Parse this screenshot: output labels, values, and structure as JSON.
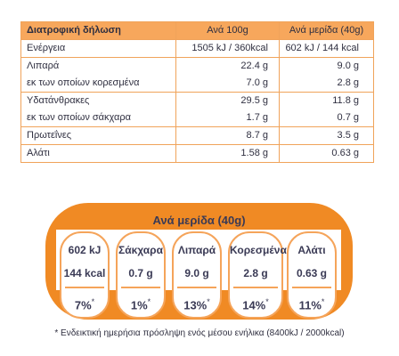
{
  "table": {
    "header": {
      "label": "Διατροφική δήλωση",
      "per100": "Ανά 100g",
      "perPortion": "Ανά μερίδα (40g)"
    },
    "rows": [
      {
        "label": "Ενέργεια",
        "per100": "1505 kJ / 360kcal",
        "perPortion": "602 kJ / 144 kcal"
      },
      {
        "label": "Λιπαρά",
        "per100": "22.4 g",
        "perPortion": "9.0 g"
      },
      {
        "label": "εκ των οποίων κορεσμένα",
        "per100": "7.0 g",
        "perPortion": "2.8 g"
      },
      {
        "label": "Υδατάνθρακες",
        "per100": "29.5 g",
        "perPortion": "11.8 g"
      },
      {
        "label": "εκ των οποίων σάκχαρα",
        "per100": "1.7 g",
        "perPortion": "0.7 g"
      },
      {
        "label": "Πρωτεΐνες",
        "per100": "8.7 g",
        "perPortion": "3.5 g"
      },
      {
        "label": "Αλάτι",
        "per100": "1.58 g",
        "perPortion": "0.63 g"
      }
    ]
  },
  "gda": {
    "title": "Ανά μερίδα (40g)",
    "items": [
      {
        "name": "602 kJ",
        "value": "144 kcal",
        "percent": "7%",
        "star": "*"
      },
      {
        "name": "Σάκχαρα",
        "value": "0.7 g",
        "percent": "1%",
        "star": "*"
      },
      {
        "name": "Λιπαρά",
        "value": "9.0 g",
        "percent": "13%",
        "star": "*"
      },
      {
        "name": "Κορεσμένα",
        "value": "2.8 g",
        "percent": "14%",
        "star": "*"
      },
      {
        "name": "Αλάτι",
        "value": "0.63 g",
        "percent": "11%",
        "star": "*"
      }
    ],
    "colors": {
      "badge": "#f08a24",
      "outline": "#f5a45a",
      "header": "#f7a75c"
    }
  },
  "footnote": "* Ενδεικτική ημερήσια πρόσληψη ενός μέσου ενήλικα (8400kJ / 2000kcal)"
}
